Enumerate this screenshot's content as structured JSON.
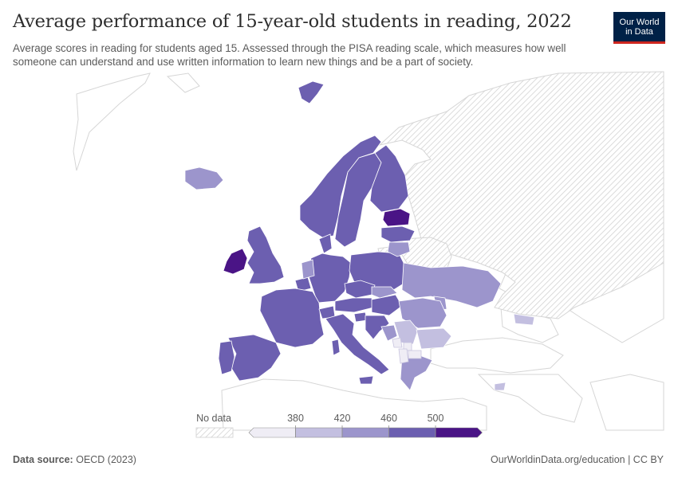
{
  "header": {
    "title": "Average performance of 15-year-old students in reading, 2022",
    "subtitle": "Average scores in reading for students aged 15. Assessed through the PISA reading scale, which measures how well someone can understand and use written information to learn new things and be a part of society."
  },
  "logo": {
    "line1": "Our World",
    "line2": "in Data",
    "bg_color": "#002147",
    "accent_color": "#ce261e"
  },
  "legend": {
    "no_data_label": "No data",
    "ticks": [
      "380",
      "420",
      "460",
      "500"
    ],
    "bin_colors": [
      "#efedf5",
      "#c3bfe0",
      "#9c95cc",
      "#6c5fb0",
      "#4a1486"
    ]
  },
  "chart_data": {
    "type": "choropleth",
    "region": "Europe",
    "bins": [
      {
        "range": "<380",
        "color": "#efedf5",
        "countries": [
          "Albania",
          "Kosovo",
          "North Macedonia",
          "Montenegro"
        ]
      },
      {
        "range": "380-420",
        "color": "#c3bfe0",
        "countries": [
          "Bulgaria",
          "Cyprus",
          "Serbia",
          "Georgia"
        ]
      },
      {
        "range": "420-460",
        "color": "#9c95cc",
        "countries": [
          "Iceland",
          "Netherlands",
          "Slovakia",
          "Romania",
          "Greece",
          "Ukraine",
          "Moldova",
          "Lithuania",
          "Bosnia and Herzegovina"
        ]
      },
      {
        "range": "460-500",
        "color": "#6c5fb0",
        "countries": [
          "Norway",
          "Sweden",
          "Finland",
          "Denmark",
          "United Kingdom",
          "Germany",
          "Poland",
          "France",
          "Spain",
          "Portugal",
          "Italy",
          "Belgium",
          "Austria",
          "Czechia",
          "Hungary",
          "Croatia",
          "Slovenia",
          "Switzerland",
          "Latvia"
        ]
      },
      {
        "range": ">500",
        "color": "#4a1486",
        "countries": [
          "Ireland",
          "Estonia"
        ]
      }
    ],
    "no_data": [
      "Russia",
      "Belarus"
    ]
  },
  "footer": {
    "source_label": "Data source:",
    "source_value": "OECD (2023)",
    "credit": "OurWorldinData.org/education | CC BY"
  }
}
